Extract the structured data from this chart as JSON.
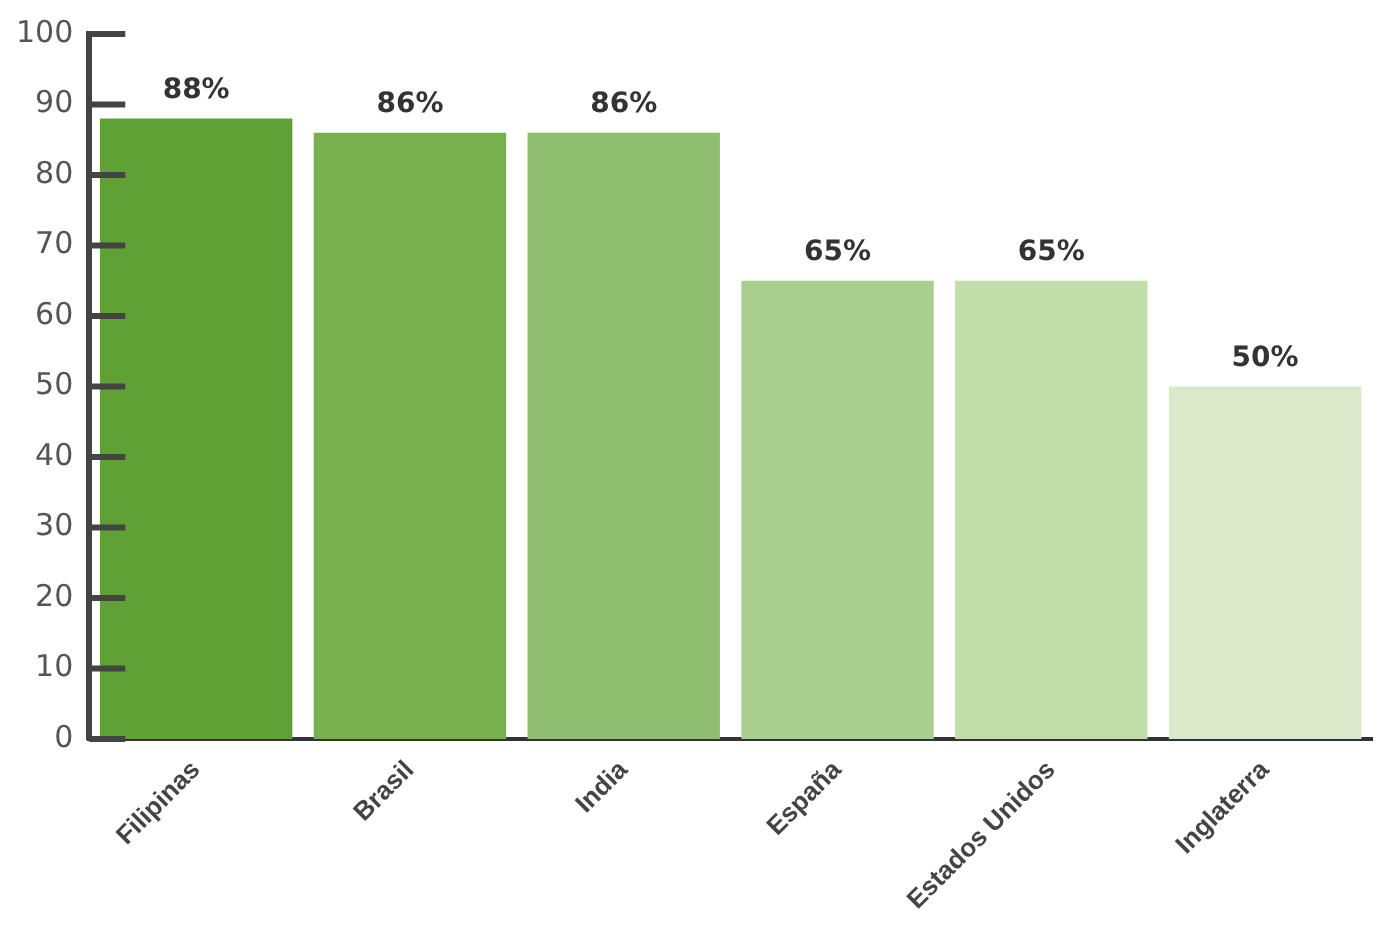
{
  "chart_data": {
    "type": "bar",
    "categories": [
      "Filipinas",
      "Brasil",
      "India",
      "España",
      "Estados Unidos",
      "Inglaterra"
    ],
    "values": [
      88,
      86,
      86,
      65,
      65,
      50
    ],
    "value_labels": [
      "88%",
      "86%",
      "86%",
      "65%",
      "65%",
      "50%"
    ],
    "colors": [
      "#5fa134",
      "#78b04f",
      "#8fbf6e",
      "#a8cf8e",
      "#c0ddaa",
      "#d9e9c9"
    ],
    "ylim": [
      0,
      100
    ],
    "yticks": [
      0,
      10,
      20,
      30,
      40,
      50,
      60,
      70,
      80,
      90,
      100
    ],
    "grid": false,
    "legend": false
  }
}
